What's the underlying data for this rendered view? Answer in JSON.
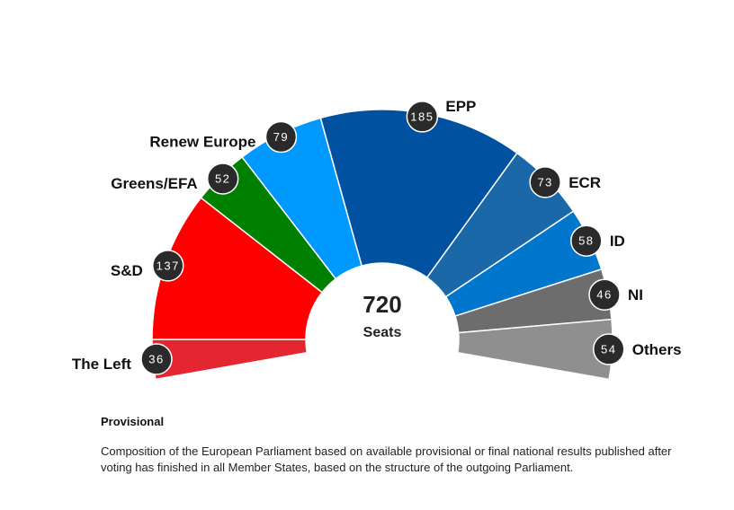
{
  "chart_data": {
    "type": "parliament-hemicycle",
    "title": "",
    "total_value": "720",
    "total_label": "Seats",
    "groups": [
      {
        "name": "The Left",
        "seats": 36,
        "color": "#e3262f",
        "side": "left"
      },
      {
        "name": "S&D",
        "seats": 137,
        "color": "#ff0000",
        "side": "left"
      },
      {
        "name": "Greens/EFA",
        "seats": 52,
        "color": "#008000",
        "side": "left"
      },
      {
        "name": "Renew Europe",
        "seats": 79,
        "color": "#0099ff",
        "side": "left"
      },
      {
        "name": "EPP",
        "seats": 185,
        "color": "#0052a0",
        "side": "right"
      },
      {
        "name": "ECR",
        "seats": 73,
        "color": "#1a68a8",
        "side": "right"
      },
      {
        "name": "ID",
        "seats": 58,
        "color": "#0077cc",
        "side": "right"
      },
      {
        "name": "NI",
        "seats": 46,
        "color": "#6d6d6d",
        "side": "right"
      },
      {
        "name": "Others",
        "seats": 54,
        "color": "#8f8f8f",
        "side": "right"
      }
    ],
    "badge_color": "#2a2a2a"
  },
  "notes": {
    "title": "Provisional",
    "body": "Composition of the European Parliament based on available provisional or final national results published after voting has finished in all Member States, based on the structure of the outgoing Parliament."
  }
}
